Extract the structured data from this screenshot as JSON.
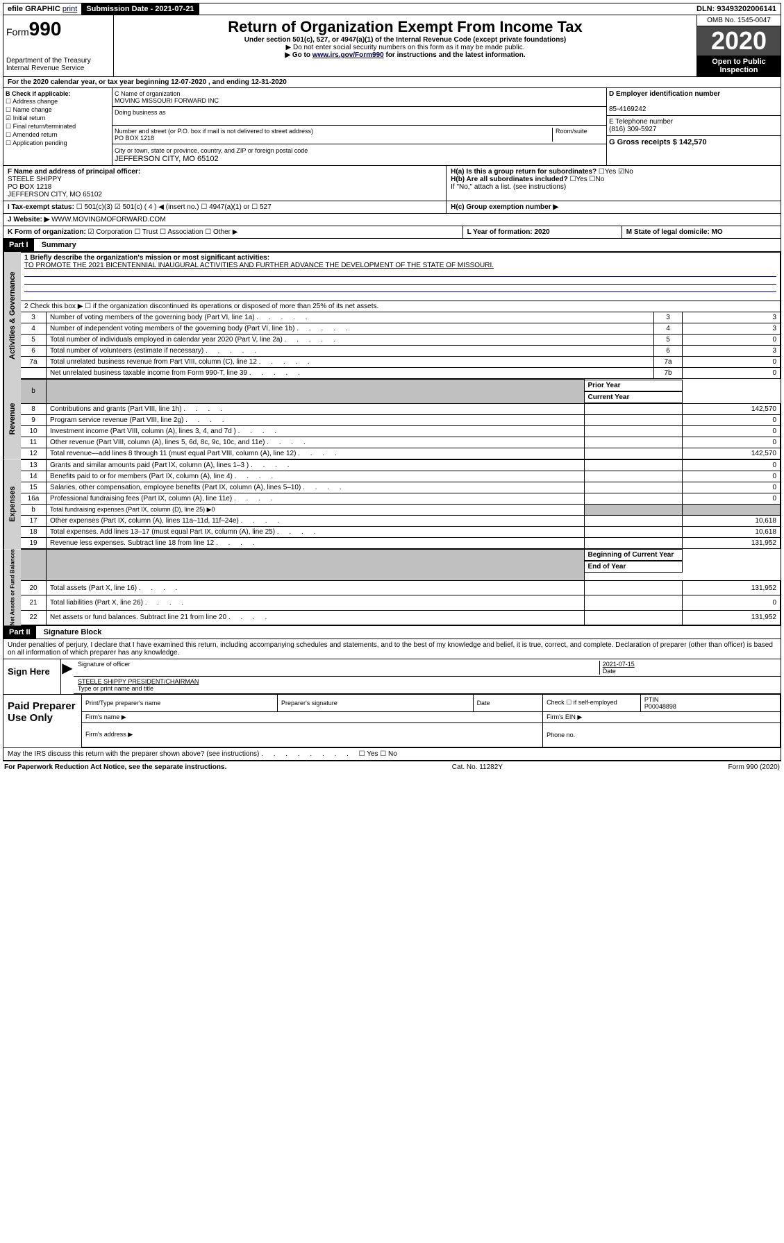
{
  "topbar": {
    "efile": "efile GRAPHIC",
    "print": "print",
    "submission": "Submission Date - 2021-07-21",
    "dln": "DLN: 93493202006141"
  },
  "header": {
    "form_prefix": "Form",
    "form_num": "990",
    "dept": "Department of the Treasury\nInternal Revenue Service",
    "title": "Return of Organization Exempt From Income Tax",
    "sub1": "Under section 501(c), 527, or 4947(a)(1) of the Internal Revenue Code (except private foundations)",
    "sub2": "▶ Do not enter social security numbers on this form as it may be made public.",
    "sub3_pre": "▶ Go to ",
    "sub3_link": "www.irs.gov/Form990",
    "sub3_post": " for instructions and the latest information.",
    "omb": "OMB No. 1545-0047",
    "year": "2020",
    "open": "Open to Public Inspection"
  },
  "sectA": {
    "label": "For the 2020 calendar year, or tax year beginning 12-07-2020    , and ending 12-31-2020"
  },
  "sectB": {
    "label": "B Check if applicable:",
    "opts": [
      "Address change",
      "Name change",
      "Initial return",
      "Final return/terminated",
      "Amended return",
      "Application pending"
    ],
    "checked_idx": 2
  },
  "sectC": {
    "name_label": "C Name of organization",
    "name": "MOVING MISSOURI FORWARD INC",
    "dba_label": "Doing business as",
    "addr_label": "Number and street (or P.O. box if mail is not delivered to street address)",
    "room_label": "Room/suite",
    "addr": "PO BOX 1218",
    "city_label": "City or town, state or province, country, and ZIP or foreign postal code",
    "city": "JEFFERSON CITY, MO  65102"
  },
  "sectD": {
    "label": "D Employer identification number",
    "val": "85-4169242"
  },
  "sectE": {
    "label": "E Telephone number",
    "val": "(816) 309-5927"
  },
  "sectG": {
    "label": "G Gross receipts $ 142,570"
  },
  "sectF": {
    "label": "F Name and address of principal officer:",
    "name": "STEELE SHIPPY",
    "addr1": "PO BOX 1218",
    "addr2": "JEFFERSON CITY, MO  65102"
  },
  "sectH": {
    "a": "H(a)  Is this a group return for subordinates?",
    "a_yes": "Yes",
    "a_no": "No",
    "b": "H(b)  Are all subordinates included?",
    "b_yes": "Yes",
    "b_no": "No",
    "b_note": "If \"No,\" attach a list. (see instructions)",
    "c": "H(c)  Group exemption number ▶"
  },
  "sectI": {
    "label": "I Tax-exempt status:",
    "o1": "501(c)(3)",
    "o2": "501(c) ( 4 ) ◀ (insert no.)",
    "o3": "4947(a)(1) or",
    "o4": "527"
  },
  "sectJ": {
    "label": "J Website: ▶",
    "val": "WWW.MOVINGMOFORWARD.COM"
  },
  "sectK": {
    "label": "K Form of organization:",
    "o1": "Corporation",
    "o2": "Trust",
    "o3": "Association",
    "o4": "Other ▶"
  },
  "sectL": {
    "label": "L Year of formation: 2020"
  },
  "sectM": {
    "label": "M State of legal domicile: MO"
  },
  "part1": {
    "hdr": "Part I",
    "title": "Summary",
    "line1_label": "1 Briefly describe the organization's mission or most significant activities:",
    "line1_text": "TO PROMOTE THE 2021 BICENTENNIAL INAUGURAL ACTIVITIES AND FURTHER ADVANCE THE DEVELOPMENT OF THE STATE OF MISSOURI.",
    "line2": "2   Check this box ▶ ☐  if the organization discontinued its operations or disposed of more than 25% of its net assets."
  },
  "sides": {
    "ag": "Activities & Governance",
    "rev": "Revenue",
    "exp": "Expenses",
    "nab": "Net Assets or Fund Balances"
  },
  "tbl": {
    "prior": "Prior Year",
    "current": "Current Year",
    "boy": "Beginning of Current Year",
    "eoy": "End of Year",
    "rows_ag": [
      {
        "n": "3",
        "d": "Number of voting members of the governing body (Part VI, line 1a)",
        "c1": "3",
        "c2": "3"
      },
      {
        "n": "4",
        "d": "Number of independent voting members of the governing body (Part VI, line 1b)",
        "c1": "4",
        "c2": "3"
      },
      {
        "n": "5",
        "d": "Total number of individuals employed in calendar year 2020 (Part V, line 2a)",
        "c1": "5",
        "c2": "0"
      },
      {
        "n": "6",
        "d": "Total number of volunteers (estimate if necessary)",
        "c1": "6",
        "c2": "3"
      },
      {
        "n": "7a",
        "d": "Total unrelated business revenue from Part VIII, column (C), line 12",
        "c1": "7a",
        "c2": "0"
      },
      {
        "n": "",
        "d": "Net unrelated business taxable income from Form 990-T, line 39",
        "c1": "7b",
        "c2": "0"
      }
    ],
    "rows_rev": [
      {
        "n": "8",
        "d": "Contributions and grants (Part VIII, line 1h)",
        "c2": "142,570"
      },
      {
        "n": "9",
        "d": "Program service revenue (Part VIII, line 2g)",
        "c2": "0"
      },
      {
        "n": "10",
        "d": "Investment income (Part VIII, column (A), lines 3, 4, and 7d )",
        "c2": "0"
      },
      {
        "n": "11",
        "d": "Other revenue (Part VIII, column (A), lines 5, 6d, 8c, 9c, 10c, and 11e)",
        "c2": "0"
      },
      {
        "n": "12",
        "d": "Total revenue—add lines 8 through 11 (must equal Part VIII, column (A), line 12)",
        "c2": "142,570"
      }
    ],
    "rows_exp": [
      {
        "n": "13",
        "d": "Grants and similar amounts paid (Part IX, column (A), lines 1–3 )",
        "c2": "0"
      },
      {
        "n": "14",
        "d": "Benefits paid to or for members (Part IX, column (A), line 4)",
        "c2": "0"
      },
      {
        "n": "15",
        "d": "Salaries, other compensation, employee benefits (Part IX, column (A), lines 5–10)",
        "c2": "0"
      },
      {
        "n": "16a",
        "d": "Professional fundraising fees (Part IX, column (A), line 11e)",
        "c2": "0"
      },
      {
        "n": "b",
        "d": "Total fundraising expenses (Part IX, column (D), line 25) ▶0",
        "shade": true
      },
      {
        "n": "17",
        "d": "Other expenses (Part IX, column (A), lines 11a–11d, 11f–24e)",
        "c2": "10,618"
      },
      {
        "n": "18",
        "d": "Total expenses. Add lines 13–17 (must equal Part IX, column (A), line 25)",
        "c2": "10,618"
      },
      {
        "n": "19",
        "d": "Revenue less expenses. Subtract line 18 from line 12",
        "c2": "131,952"
      }
    ],
    "rows_nab": [
      {
        "n": "20",
        "d": "Total assets (Part X, line 16)",
        "c2": "131,952"
      },
      {
        "n": "21",
        "d": "Total liabilities (Part X, line 26)",
        "c2": "0"
      },
      {
        "n": "22",
        "d": "Net assets or fund balances. Subtract line 21 from line 20",
        "c2": "131,952"
      }
    ]
  },
  "part2": {
    "hdr": "Part II",
    "title": "Signature Block",
    "perjury": "Under penalties of perjury, I declare that I have examined this return, including accompanying schedules and statements, and to the best of my knowledge and belief, it is true, correct, and complete. Declaration of preparer (other than officer) is based on all information of which preparer has any knowledge."
  },
  "sign": {
    "here": "Sign Here",
    "sig_label": "Signature of officer",
    "date": "2021-07-15",
    "date_label": "Date",
    "name": "STEELE SHIPPY PRESIDENT/CHAIRMAN",
    "name_label": "Type or print name and title"
  },
  "paid": {
    "title": "Paid Preparer Use Only",
    "h1": "Print/Type preparer's name",
    "h2": "Preparer's signature",
    "h3": "Date",
    "h4": "Check ☐ if self-employed",
    "h5": "PTIN",
    "ptin": "P00048898",
    "firm_name": "Firm's name  ▶",
    "firm_ein": "Firm's EIN ▶",
    "firm_addr": "Firm's address ▶",
    "phone": "Phone no."
  },
  "discuss": {
    "text": "May the IRS discuss this return with the preparer shown above? (see instructions)",
    "yes": "Yes",
    "no": "No"
  },
  "footer": {
    "left": "For Paperwork Reduction Act Notice, see the separate instructions.",
    "mid": "Cat. No. 11282Y",
    "right": "Form 990 (2020)"
  }
}
